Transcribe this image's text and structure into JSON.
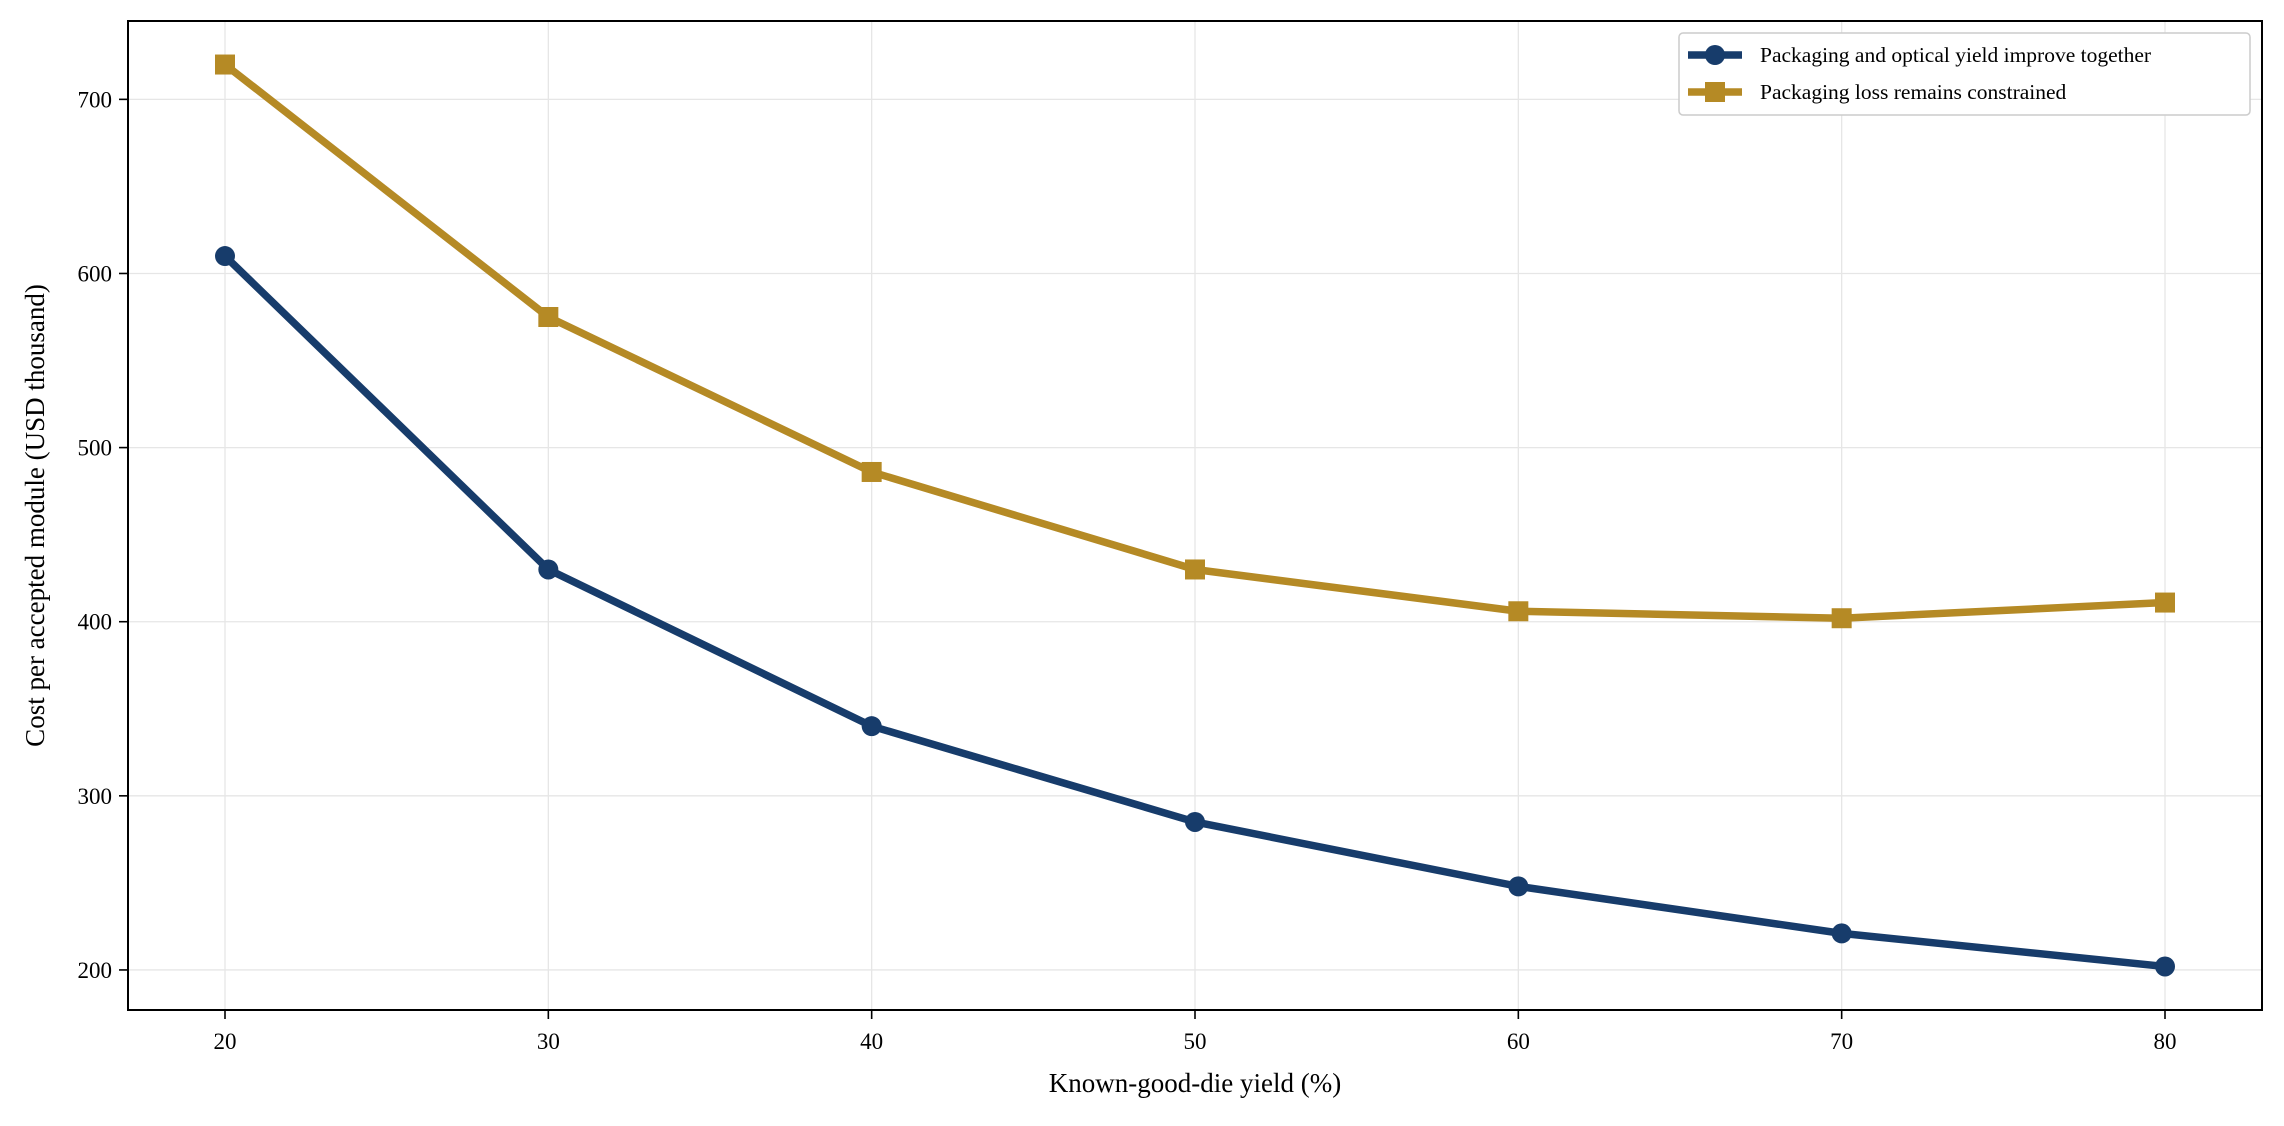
{
  "chart_data": {
    "type": "line",
    "title": "",
    "xlabel": "Known-good-die yield (%)",
    "ylabel": "Cost per accepted module (USD thousand)",
    "x": [
      20,
      30,
      40,
      50,
      60,
      70,
      80
    ],
    "xlim": [
      17,
      83
    ],
    "ylim": [
      177,
      745
    ],
    "xticks": [
      20,
      30,
      40,
      50,
      60,
      70,
      80
    ],
    "yticks": [
      200,
      300,
      400,
      500,
      600,
      700
    ],
    "grid": true,
    "legend_position": "top-right",
    "series": [
      {
        "name": "Packaging and optical yield improve together",
        "color": "#173c6b",
        "marker": "circle",
        "values": [
          610,
          430,
          340,
          285,
          248,
          221,
          202
        ]
      },
      {
        "name": "Packaging loss remains constrained",
        "color": "#b58a25",
        "marker": "square",
        "values": [
          720,
          575,
          486,
          430,
          406,
          402,
          411
        ]
      }
    ]
  }
}
